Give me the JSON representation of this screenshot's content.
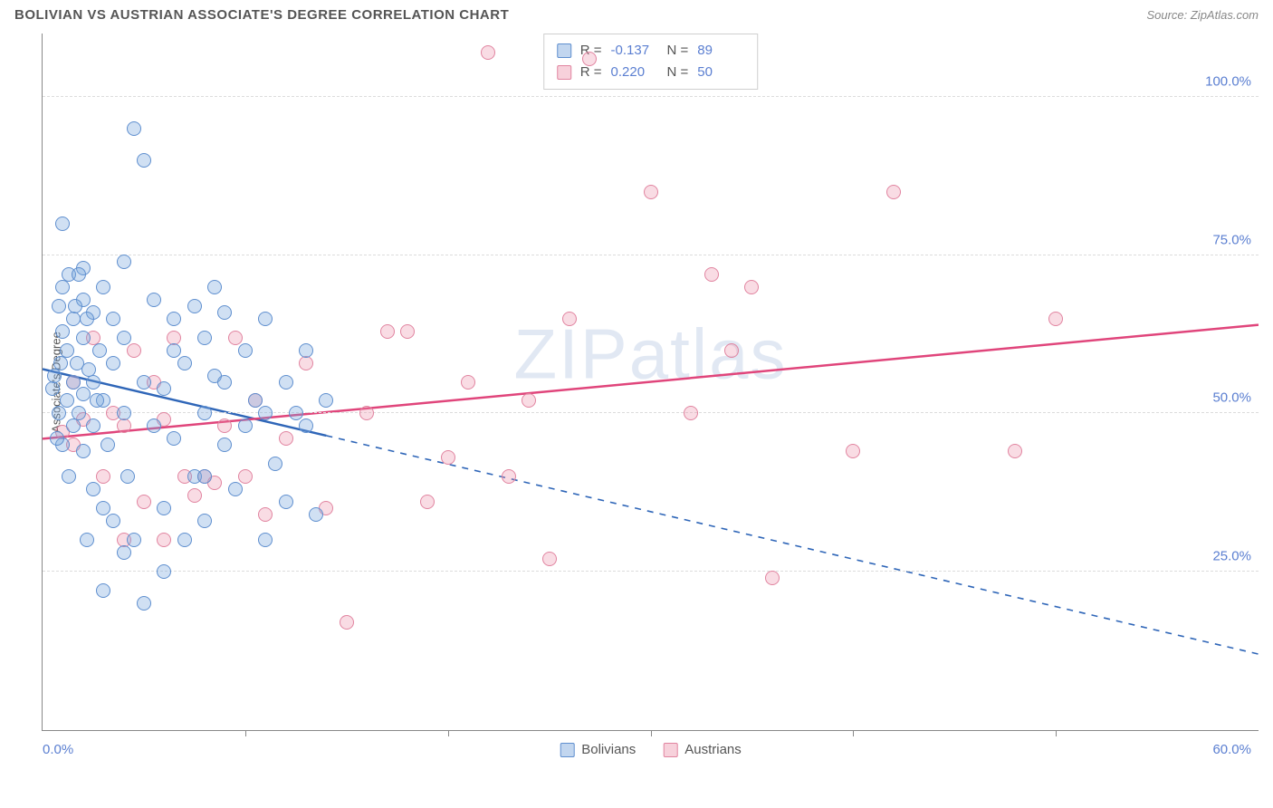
{
  "title": "BOLIVIAN VS AUSTRIAN ASSOCIATE'S DEGREE CORRELATION CHART",
  "source_label": "Source: ZipAtlas.com",
  "ylabel": "Associate's Degree",
  "watermark": "ZIPatlas",
  "xaxis": {
    "min_label": "0.0%",
    "max_label": "60.0%",
    "min": 0,
    "max": 60,
    "tick_step": 10
  },
  "yaxis": {
    "min": 0,
    "max": 110,
    "ticks": [
      {
        "v": 25,
        "label": "25.0%"
      },
      {
        "v": 50,
        "label": "50.0%"
      },
      {
        "v": 75,
        "label": "75.0%"
      },
      {
        "v": 100,
        "label": "100.0%"
      }
    ]
  },
  "series": [
    {
      "name": "Bolivians",
      "fill": "rgba(120,165,220,0.35)",
      "stroke": "#5f8fcf",
      "line_color": "#2f66b8",
      "marker_r": 8,
      "stats": {
        "R": "-0.137",
        "N": "89"
      },
      "trend": {
        "y_at_xmin": 57,
        "y_at_xmax": 12,
        "solid_until_x": 14
      },
      "points": [
        [
          0.5,
          54
        ],
        [
          0.6,
          56
        ],
        [
          0.8,
          50
        ],
        [
          0.8,
          67
        ],
        [
          1.0,
          45
        ],
        [
          1.0,
          63
        ],
        [
          1.0,
          70
        ],
        [
          1.0,
          80
        ],
        [
          1.2,
          52
        ],
        [
          1.2,
          60
        ],
        [
          1.3,
          72
        ],
        [
          1.5,
          48
        ],
        [
          1.5,
          55
        ],
        [
          1.5,
          65
        ],
        [
          1.7,
          58
        ],
        [
          1.8,
          50
        ],
        [
          2.0,
          44
        ],
        [
          2.0,
          53
        ],
        [
          2.0,
          62
        ],
        [
          2.0,
          68
        ],
        [
          2.0,
          73
        ],
        [
          2.2,
          30
        ],
        [
          2.3,
          57
        ],
        [
          2.5,
          38
        ],
        [
          2.5,
          48
        ],
        [
          2.5,
          55
        ],
        [
          2.5,
          66
        ],
        [
          2.8,
          60
        ],
        [
          3.0,
          22
        ],
        [
          3.0,
          52
        ],
        [
          3.0,
          70
        ],
        [
          3.2,
          45
        ],
        [
          3.5,
          33
        ],
        [
          3.5,
          58
        ],
        [
          3.5,
          65
        ],
        [
          4.0,
          28
        ],
        [
          4.0,
          50
        ],
        [
          4.0,
          62
        ],
        [
          4.0,
          74
        ],
        [
          4.5,
          95
        ],
        [
          4.5,
          30
        ],
        [
          5.0,
          20
        ],
        [
          5.0,
          55
        ],
        [
          5.0,
          90
        ],
        [
          5.5,
          48
        ],
        [
          5.5,
          68
        ],
        [
          6.0,
          25
        ],
        [
          6.0,
          35
        ],
        [
          6.0,
          54
        ],
        [
          6.5,
          46
        ],
        [
          6.5,
          65
        ],
        [
          7.0,
          30
        ],
        [
          7.0,
          58
        ],
        [
          7.5,
          40
        ],
        [
          7.5,
          67
        ],
        [
          8.0,
          33
        ],
        [
          8.0,
          50
        ],
        [
          8.0,
          62
        ],
        [
          8.5,
          56
        ],
        [
          8.5,
          70
        ],
        [
          9.0,
          45
        ],
        [
          9.0,
          55
        ],
        [
          9.0,
          66
        ],
        [
          9.5,
          38
        ],
        [
          10.0,
          48
        ],
        [
          10.0,
          60
        ],
        [
          10.5,
          52
        ],
        [
          11.0,
          30
        ],
        [
          11.0,
          50
        ],
        [
          11.0,
          65
        ],
        [
          11.5,
          42
        ],
        [
          12.0,
          36
        ],
        [
          12.0,
          55
        ],
        [
          12.5,
          50
        ],
        [
          13.0,
          60
        ],
        [
          13.0,
          48
        ],
        [
          13.5,
          34
        ],
        [
          14.0,
          52
        ],
        [
          8.0,
          40
        ],
        [
          3.0,
          35
        ],
        [
          6.5,
          60
        ],
        [
          4.2,
          40
        ],
        [
          2.2,
          65
        ],
        [
          1.8,
          72
        ],
        [
          1.3,
          40
        ],
        [
          0.7,
          46
        ],
        [
          0.9,
          58
        ],
        [
          1.6,
          67
        ],
        [
          2.7,
          52
        ]
      ]
    },
    {
      "name": "Austrians",
      "fill": "rgba(235,140,165,0.30)",
      "stroke": "#e184a0",
      "line_color": "#e0457b",
      "marker_r": 8,
      "stats": {
        "R": "0.220",
        "N": "50"
      },
      "trend": {
        "y_at_xmin": 46,
        "y_at_xmax": 64,
        "solid_until_x": 60
      },
      "points": [
        [
          1.0,
          47
        ],
        [
          1.5,
          55
        ],
        [
          2.0,
          49
        ],
        [
          2.5,
          62
        ],
        [
          3.0,
          40
        ],
        [
          3.5,
          50
        ],
        [
          4.0,
          48
        ],
        [
          4.5,
          60
        ],
        [
          5.0,
          36
        ],
        [
          5.5,
          55
        ],
        [
          6.0,
          49
        ],
        [
          6.5,
          62
        ],
        [
          7.0,
          40
        ],
        [
          7.5,
          37
        ],
        [
          8.0,
          40
        ],
        [
          8.5,
          39
        ],
        [
          9.0,
          48
        ],
        [
          9.5,
          62
        ],
        [
          10.0,
          40
        ],
        [
          10.5,
          52
        ],
        [
          11.0,
          34
        ],
        [
          12.0,
          46
        ],
        [
          13.0,
          58
        ],
        [
          14.0,
          35
        ],
        [
          15.0,
          17
        ],
        [
          16.0,
          50
        ],
        [
          17.0,
          63
        ],
        [
          18.0,
          63
        ],
        [
          19.0,
          36
        ],
        [
          20.0,
          43
        ],
        [
          21.0,
          55
        ],
        [
          22.0,
          107
        ],
        [
          23.0,
          40
        ],
        [
          24.0,
          52
        ],
        [
          25.0,
          27
        ],
        [
          26.0,
          65
        ],
        [
          27.0,
          106
        ],
        [
          30.0,
          85
        ],
        [
          32.0,
          50
        ],
        [
          33.0,
          72
        ],
        [
          34.0,
          60
        ],
        [
          35.0,
          70
        ],
        [
          36.0,
          24
        ],
        [
          40.0,
          44
        ],
        [
          42.0,
          85
        ],
        [
          48.0,
          44
        ],
        [
          50.0,
          65
        ],
        [
          4.0,
          30
        ],
        [
          6.0,
          30
        ],
        [
          1.5,
          45
        ]
      ]
    }
  ],
  "legend": [
    {
      "label": "Bolivians",
      "fill": "rgba(120,165,220,0.45)",
      "border": "#5f8fcf"
    },
    {
      "label": "Austrians",
      "fill": "rgba(235,140,165,0.40)",
      "border": "#e184a0"
    }
  ],
  "stats_box_swatches": [
    {
      "fill": "rgba(120,165,220,0.45)",
      "border": "#5f8fcf"
    },
    {
      "fill": "rgba(235,140,165,0.40)",
      "border": "#e184a0"
    }
  ],
  "colors": {
    "title": "#555555",
    "grid": "#dcdcdc",
    "axis": "#888888",
    "value": "#5b7fd1",
    "bg": "#ffffff"
  }
}
